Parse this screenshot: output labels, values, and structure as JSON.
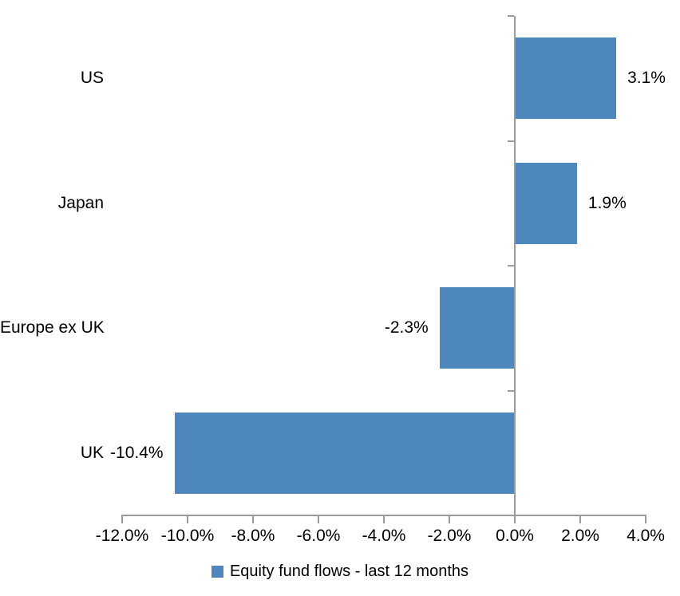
{
  "chart_data": {
    "type": "bar",
    "orientation": "horizontal",
    "title": "",
    "categories": [
      "US",
      "Japan",
      "Europe ex UK",
      "UK"
    ],
    "series": [
      {
        "name": "Equity fund flows - last 12 months",
        "values": [
          3.1,
          1.9,
          -2.3,
          -10.4
        ],
        "value_labels": [
          "3.1%",
          "1.9%",
          "-2.3%",
          "-10.4%"
        ]
      }
    ],
    "xlabel": "",
    "ylabel": "",
    "xlim": [
      -12,
      4
    ],
    "x_ticks": [
      -12,
      -10,
      -8,
      -6,
      -4,
      -2,
      0,
      2,
      4
    ],
    "x_tick_labels": [
      "-12.0%",
      "-10.0%",
      "-8.0%",
      "-6.0%",
      "-4.0%",
      "-2.0%",
      "0.0%",
      "2.0%",
      "4.0%"
    ],
    "grid": false,
    "legend_position": "bottom",
    "colors": {
      "bar": "#4E87BD",
      "axis": "#9B9B9B",
      "text": "#000000",
      "background": "#FFFFFF"
    }
  },
  "legend": {
    "label": "Equity fund flows - last 12 months"
  }
}
